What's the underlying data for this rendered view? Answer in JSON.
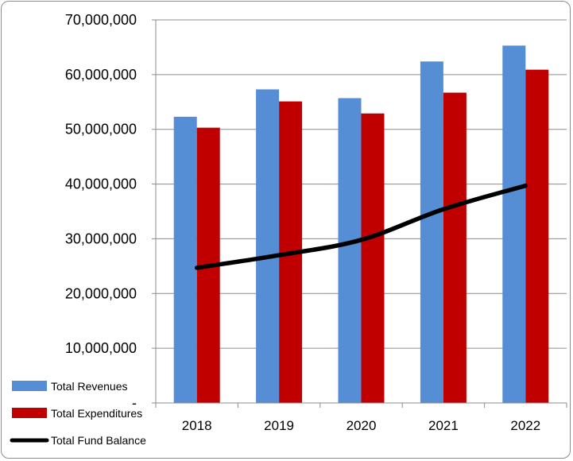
{
  "chart_data": {
    "type": "bar",
    "title": "",
    "xlabel": "",
    "ylabel": "",
    "categories": [
      "2018",
      "2019",
      "2020",
      "2021",
      "2022"
    ],
    "ylim": [
      0,
      70000000
    ],
    "yticks": [
      "-",
      "10,000,000",
      "20,000,000",
      "30,000,000",
      "40,000,000",
      "50,000,000",
      "60,000,000",
      "70,000,000"
    ],
    "ytick_values": [
      0,
      10000000,
      20000000,
      30000000,
      40000000,
      50000000,
      60000000,
      70000000
    ],
    "grid": true,
    "legend_position": "bottom-left",
    "series": [
      {
        "name": "Total Revenues",
        "type": "bar",
        "color": "#558ED5",
        "values": [
          52300000,
          57300000,
          55700000,
          62400000,
          65300000
        ]
      },
      {
        "name": "Total Expenditures",
        "type": "bar",
        "color": "#C00000",
        "values": [
          50300000,
          55100000,
          52900000,
          56700000,
          60900000
        ]
      },
      {
        "name": "Total Fund Balance",
        "type": "line",
        "color": "#000000",
        "values": [
          24700000,
          27000000,
          29800000,
          35400000,
          39700000
        ]
      }
    ]
  }
}
